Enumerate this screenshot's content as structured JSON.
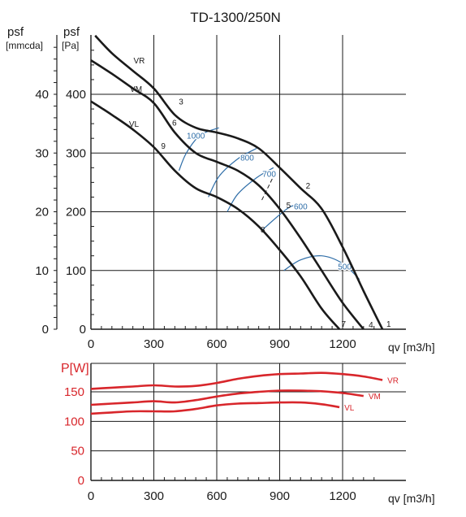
{
  "colors": {
    "curve": "#1a1a1a",
    "grid": "#1a1a1a",
    "efficiency": "#2f6ea8",
    "power": "#d8262b",
    "power_axis_label": "#d8262b"
  },
  "chart_data": [
    {
      "type": "line",
      "title": "TD-1300/250N",
      "xlabel": "qv [m3/h]",
      "ylabel_left": "psf [mmcda]",
      "ylabel_right": "psf [Pa]",
      "ylabel_left_lines": [
        "psf",
        "[mmcda]"
      ],
      "ylabel_right_lines": [
        "psf",
        "[Pa]"
      ],
      "xlim": [
        0,
        1400
      ],
      "ylim": [
        0,
        500
      ],
      "x_ticks": [
        0,
        300,
        600,
        900,
        1200
      ],
      "x_tick_labels": [
        "0",
        "300",
        "600",
        "900",
        "1200"
      ],
      "y_ticks_pa": [
        0,
        100,
        200,
        300,
        400
      ],
      "y_tick_labels_pa": [
        "0",
        "100",
        "200",
        "300",
        "400"
      ],
      "y_ticks_mmcda": [
        0,
        10,
        20,
        30,
        40
      ],
      "y_tick_labels_mmcda": [
        "0",
        "10",
        "20",
        "30",
        "40"
      ],
      "grid": true,
      "series": [
        {
          "name": "VR",
          "x": [
            20,
            100,
            200,
            300,
            400,
            500,
            600,
            700,
            800,
            900,
            1000,
            1100,
            1200,
            1300,
            1390
          ],
          "y": [
            500,
            470,
            440,
            410,
            365,
            343,
            335,
            325,
            308,
            275,
            240,
            205,
            140,
            65,
            0
          ]
        },
        {
          "name": "VM",
          "x": [
            0,
            100,
            200,
            300,
            400,
            500,
            600,
            700,
            800,
            900,
            1000,
            1100,
            1200,
            1300
          ],
          "y": [
            458,
            435,
            410,
            385,
            335,
            300,
            285,
            270,
            245,
            205,
            155,
            100,
            45,
            0
          ]
        },
        {
          "name": "VL",
          "x": [
            0,
            100,
            200,
            300,
            400,
            500,
            600,
            700,
            800,
            900,
            1000,
            1100,
            1185
          ],
          "y": [
            388,
            365,
            340,
            310,
            270,
            240,
            225,
            205,
            175,
            135,
            90,
            35,
            0
          ]
        }
      ],
      "annotations": [
        {
          "text": "VR",
          "x": 230,
          "y": 458
        },
        {
          "text": "VM",
          "x": 215,
          "y": 410
        },
        {
          "text": "VL",
          "x": 205,
          "y": 350
        },
        {
          "text": "3",
          "x": 430,
          "y": 388
        },
        {
          "text": "6",
          "x": 398,
          "y": 352
        },
        {
          "text": "9",
          "x": 345,
          "y": 313
        },
        {
          "text": "2",
          "x": 1035,
          "y": 245
        },
        {
          "text": "5",
          "x": 942,
          "y": 212
        },
        {
          "text": "8",
          "x": 820,
          "y": 170
        },
        {
          "text": "1",
          "x": 1420,
          "y": 10
        },
        {
          "text": "4",
          "x": 1335,
          "y": 8
        },
        {
          "text": "7",
          "x": 1205,
          "y": 10
        }
      ],
      "efficiency_curves": [
        {
          "label": "1000",
          "label_x": 500,
          "label_y": 330,
          "x": [
            420,
            455,
            520,
            610
          ],
          "y": [
            270,
            300,
            330,
            343
          ]
        },
        {
          "label": "800",
          "label_x": 745,
          "label_y": 293,
          "x": [
            560,
            610,
            700,
            790
          ],
          "y": [
            225,
            260,
            290,
            308
          ]
        },
        {
          "label": "700",
          "label_x": 850,
          "label_y": 265,
          "x": [
            650,
            700,
            790,
            870
          ],
          "y": [
            200,
            230,
            258,
            275
          ]
        },
        {
          "label": "600",
          "label_x": 1000,
          "label_y": 210,
          "x": [
            820,
            900,
            960,
            1030
          ],
          "y": [
            170,
            195,
            210,
            211
          ]
        },
        {
          "label": "500",
          "label_x": 1210,
          "label_y": 107,
          "x": [
            920,
            1000,
            1100,
            1200,
            1280
          ],
          "y": [
            100,
            118,
            125,
            112,
            85
          ]
        }
      ],
      "dashed_segments": [
        {
          "x": [
            815,
            870
          ],
          "y": [
            220,
            260
          ]
        }
      ]
    },
    {
      "type": "line",
      "ylabel": "P[W]",
      "xlabel": "qv [m3/h]",
      "xlim": [
        0,
        1400
      ],
      "ylim": [
        0,
        175
      ],
      "x_ticks": [
        0,
        300,
        600,
        900,
        1200
      ],
      "x_tick_labels": [
        "0",
        "300",
        "600",
        "900",
        "1200"
      ],
      "y_ticks": [
        0,
        50,
        100,
        150
      ],
      "y_tick_labels": [
        "0",
        "50",
        "100",
        "150"
      ],
      "grid": true,
      "series": [
        {
          "name": "VR",
          "x": [
            0,
            100,
            200,
            300,
            400,
            500,
            600,
            700,
            800,
            900,
            1000,
            1100,
            1200,
            1300,
            1390
          ],
          "y": [
            155,
            157,
            159,
            161,
            159,
            160,
            165,
            172,
            177,
            180,
            181,
            182,
            180,
            176,
            170
          ]
        },
        {
          "name": "VM",
          "x": [
            0,
            100,
            200,
            300,
            400,
            500,
            600,
            700,
            800,
            900,
            1000,
            1100,
            1200,
            1300
          ],
          "y": [
            128,
            130,
            132,
            134,
            132,
            136,
            142,
            147,
            150,
            152,
            152,
            151,
            148,
            143
          ]
        },
        {
          "name": "VL",
          "x": [
            0,
            100,
            200,
            300,
            400,
            500,
            600,
            700,
            800,
            900,
            1000,
            1100,
            1185
          ],
          "y": [
            113,
            115,
            117,
            117,
            117,
            121,
            127,
            130,
            131,
            132,
            132,
            129,
            124
          ]
        }
      ]
    }
  ]
}
